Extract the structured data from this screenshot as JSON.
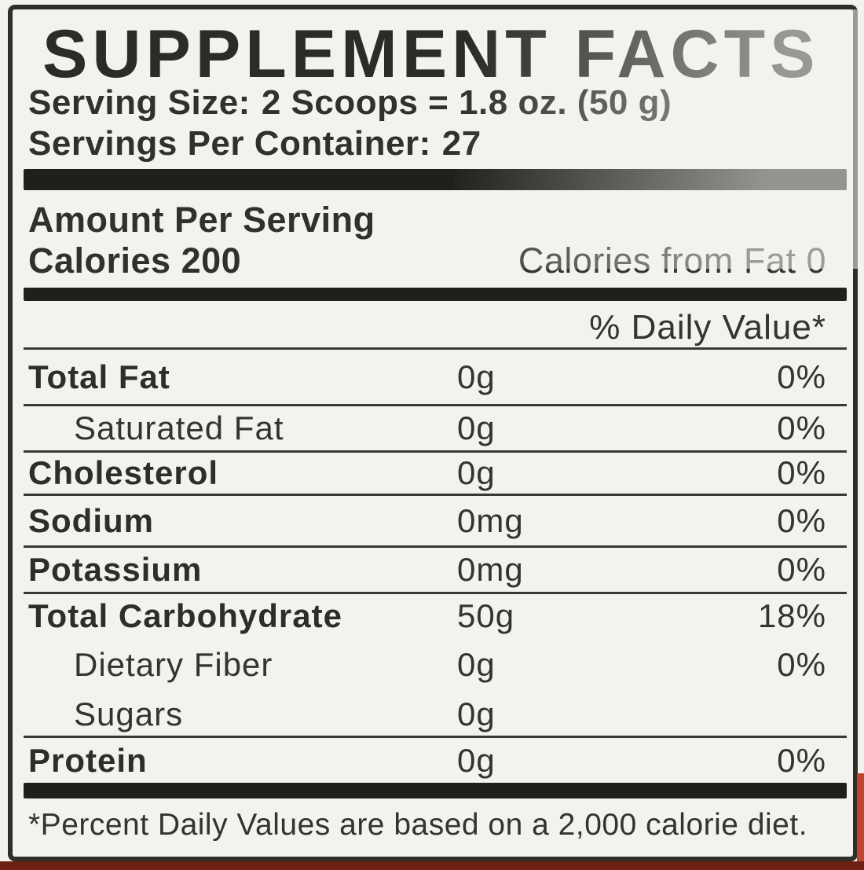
{
  "label": {
    "title": "SUPPLEMENT FACTS",
    "serving_size_label": "Serving Size:",
    "serving_size_value": "2 Scoops = 1.8 oz. (50 g)",
    "servings_per_container_label": "Servings Per Container:",
    "servings_per_container_value": "27",
    "amount_per_serving": "Amount Per Serving",
    "calories_label": "Calories",
    "calories_value": "200",
    "calories_from_fat_label": "Calories from Fat",
    "calories_from_fat_value": "0",
    "daily_value_header": "% Daily Value*",
    "rows": [
      {
        "name": "Total Fat",
        "amount": "0g",
        "dv": "0%"
      },
      {
        "name": "Saturated Fat",
        "amount": "0g",
        "dv": "0%"
      },
      {
        "name": "Cholesterol",
        "amount": "0g",
        "dv": "0%"
      },
      {
        "name": "Sodium",
        "amount": "0mg",
        "dv": "0%"
      },
      {
        "name": "Potassium",
        "amount": "0mg",
        "dv": "0%"
      },
      {
        "name": "Total Carbohydrate",
        "amount": "50g",
        "dv": "18%"
      },
      {
        "name": "Dietary Fiber",
        "amount": "0g",
        "dv": "0%"
      },
      {
        "name": "Sugars",
        "amount": "0g",
        "dv": ""
      },
      {
        "name": "Protein",
        "amount": "0g",
        "dv": "0%"
      }
    ],
    "footnote": "*Percent Daily Values are based on a 2,000 calorie diet."
  },
  "colors": {
    "label_background": "#f3f2ef",
    "ink": "#2e2d28",
    "section_bar": "#201f1a",
    "divider": "#3a3832",
    "product_red_strip": "#6d2013",
    "product_red_edge": "#c14433"
  }
}
